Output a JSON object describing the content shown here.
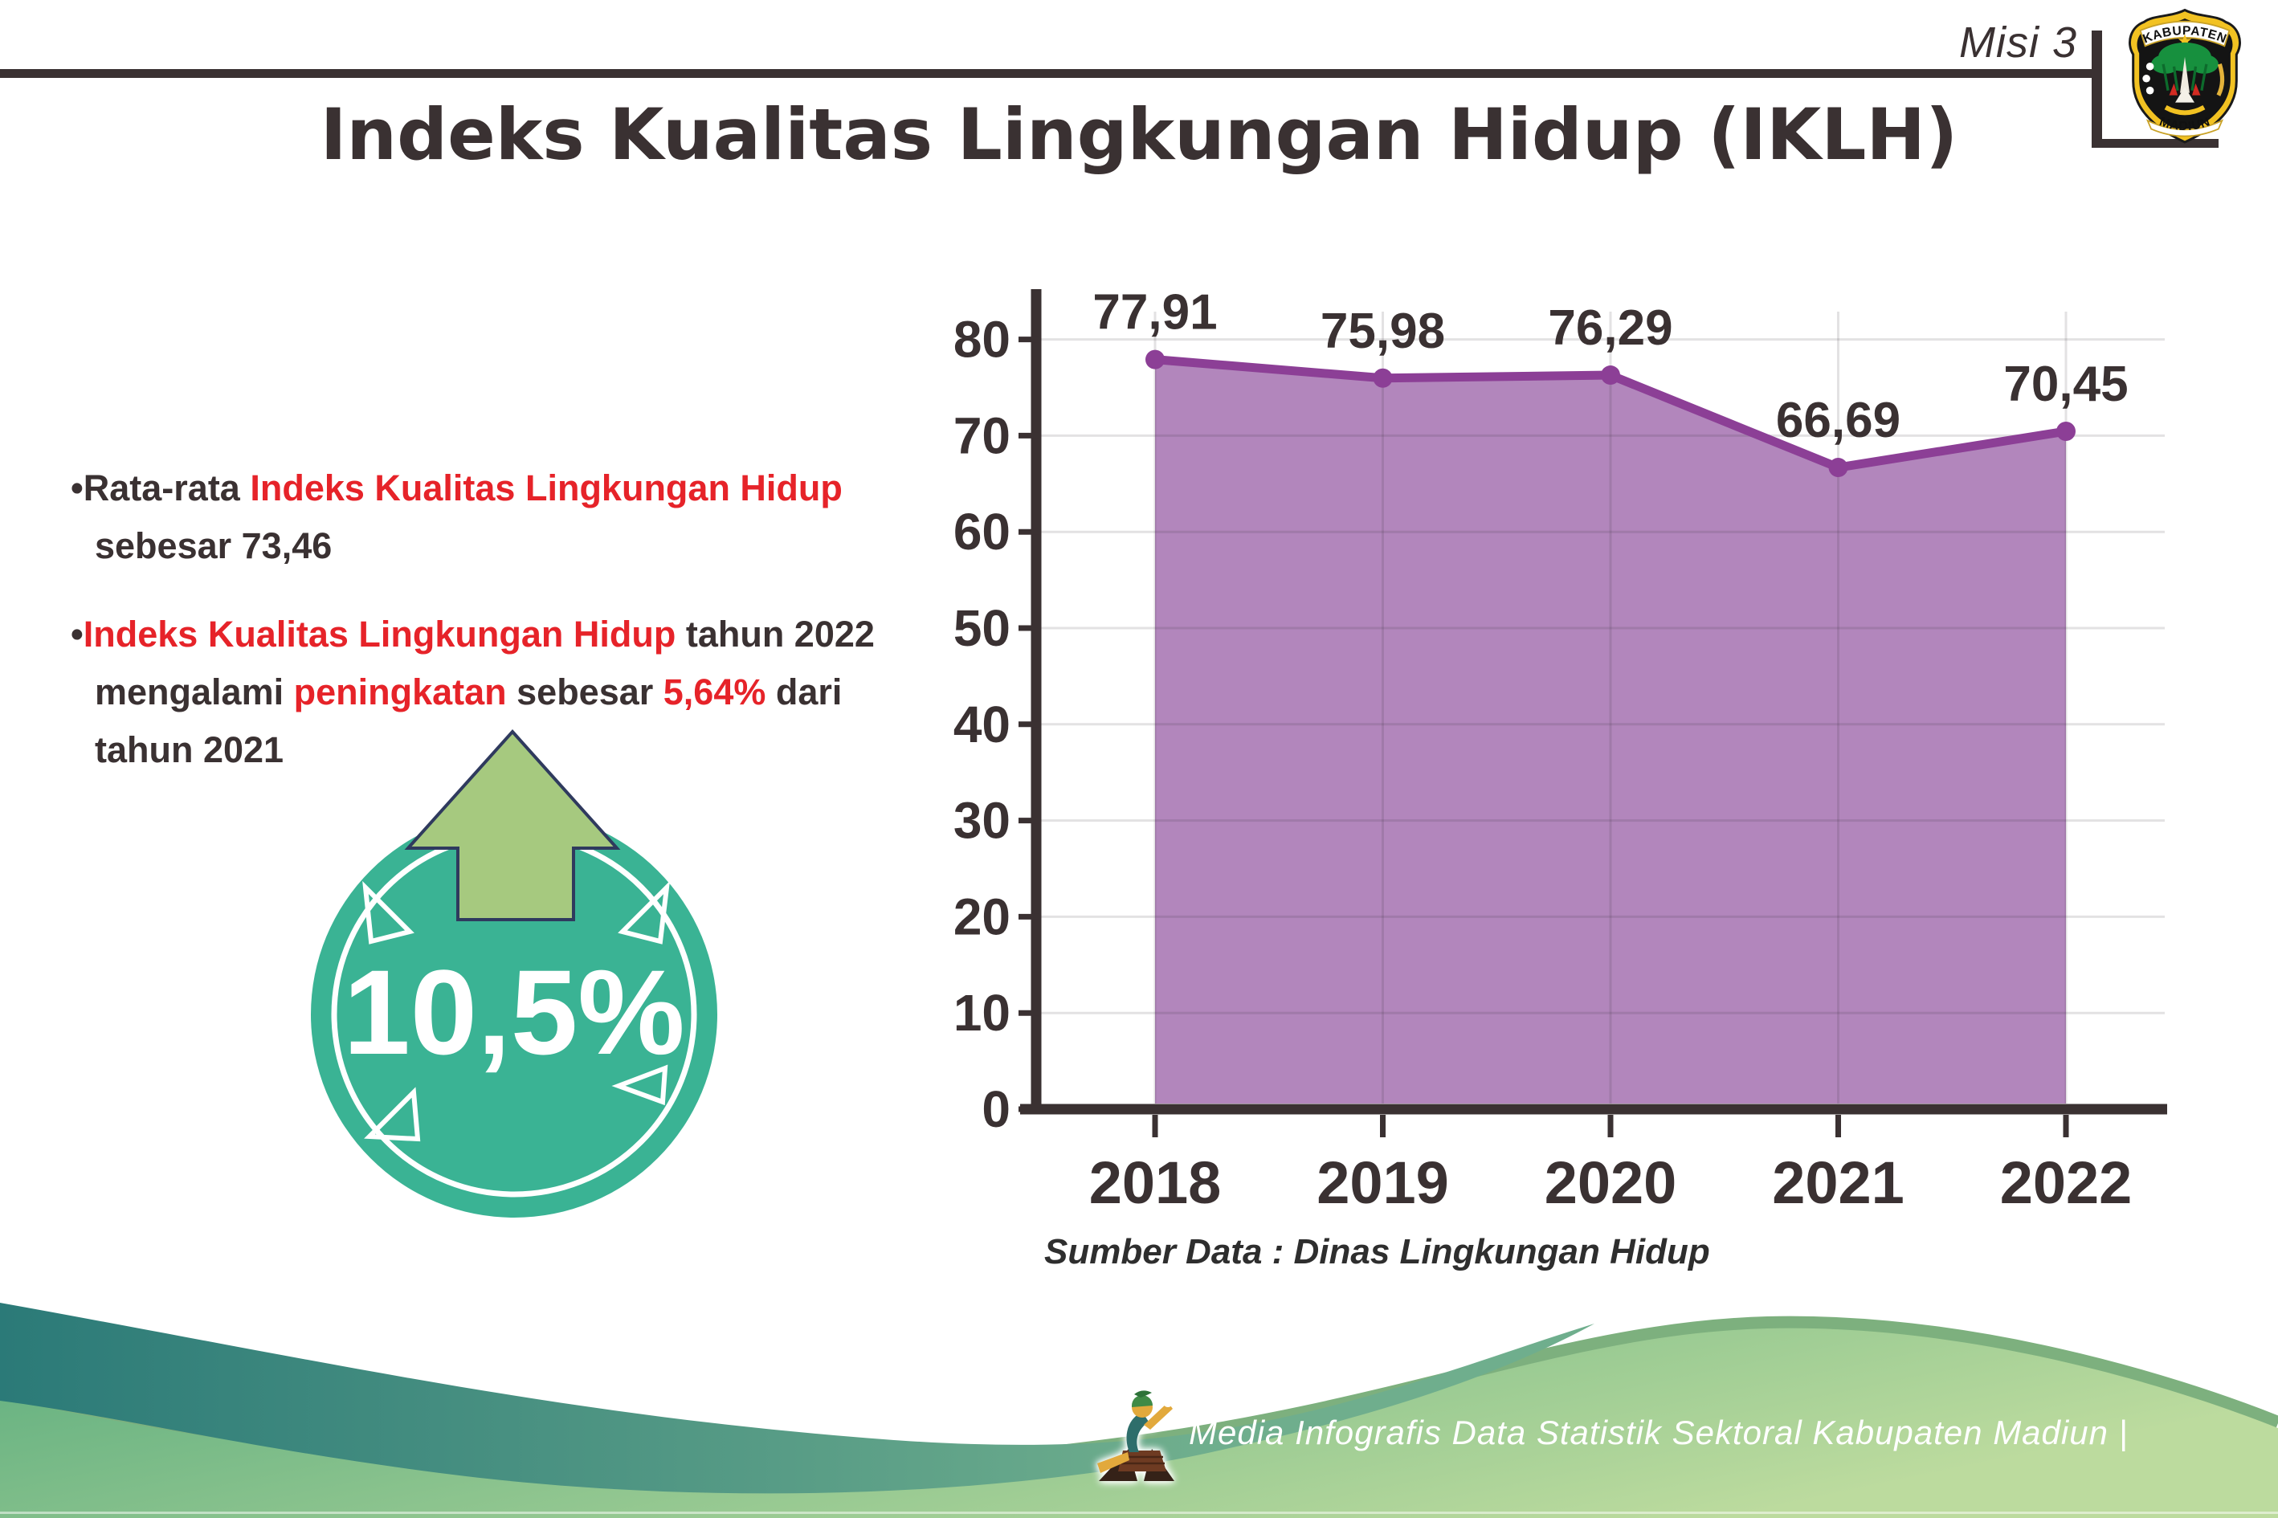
{
  "page": {
    "misi": "Misi 3",
    "title": "Indeks Kualitas Lingkungan Hidup (IKLH)"
  },
  "logo": {
    "top": "KABUPATEN",
    "bottom": "MADIUN"
  },
  "bullets": {
    "b1": [
      {
        "text": "•Rata-rata ",
        "color": "dark"
      },
      {
        "text": "Indeks Kualitas Lingkungan Hidup",
        "color": "red"
      },
      {
        "br": true
      },
      {
        "text": "sebesar 73,46",
        "color": "dark"
      }
    ],
    "b2": [
      {
        "text": "•",
        "color": "dark"
      },
      {
        "text": "Indeks Kualitas Lingkungan Hidup",
        "color": "red"
      },
      {
        "text": " tahun 2022",
        "color": "dark"
      },
      {
        "br": true
      },
      {
        "text": "mengalami ",
        "color": "dark"
      },
      {
        "text": "peningkatan",
        "color": "red"
      },
      {
        "text": " sebesar ",
        "color": "dark"
      },
      {
        "text": "5,64%",
        "color": "red"
      },
      {
        "text": " dari",
        "color": "dark"
      },
      {
        "br": true
      },
      {
        "text": "tahun 2021",
        "color": "dark"
      }
    ]
  },
  "badge": {
    "value": "10,5%"
  },
  "chart_data": {
    "type": "area",
    "title": "Indeks Kualitas Lingkungan Hidup (IKLH)",
    "categories": [
      "2018",
      "2019",
      "2020",
      "2021",
      "2022"
    ],
    "values": [
      77.91,
      75.98,
      76.29,
      66.69,
      70.45
    ],
    "labels": [
      "77,91",
      "75,98",
      "76,29",
      "66,69",
      "70,45"
    ],
    "yticks": [
      0,
      10,
      20,
      30,
      40,
      50,
      60,
      70,
      80
    ],
    "ylim": [
      0,
      85
    ],
    "xlabel": "",
    "ylabel": "",
    "grid": true,
    "legend": false,
    "source": "Sumber Data : Dinas Lingkungan Hidup",
    "fill_color": "#b286bc",
    "line_color": "#8c3f96"
  },
  "footer": {
    "text": "Media Infografis Data Statistik Sektoral Kabupaten Madiun |"
  },
  "colors": {
    "accent_red": "#e62329",
    "text_dark": "#3a3132",
    "chart_fill": "#b286bc",
    "chart_line": "#8c3f96",
    "badge_teal": "#3ab394",
    "arrow_green": "#a6c97f",
    "footer_teal": "#2b7a78",
    "footer_green": "#8fc98a"
  }
}
